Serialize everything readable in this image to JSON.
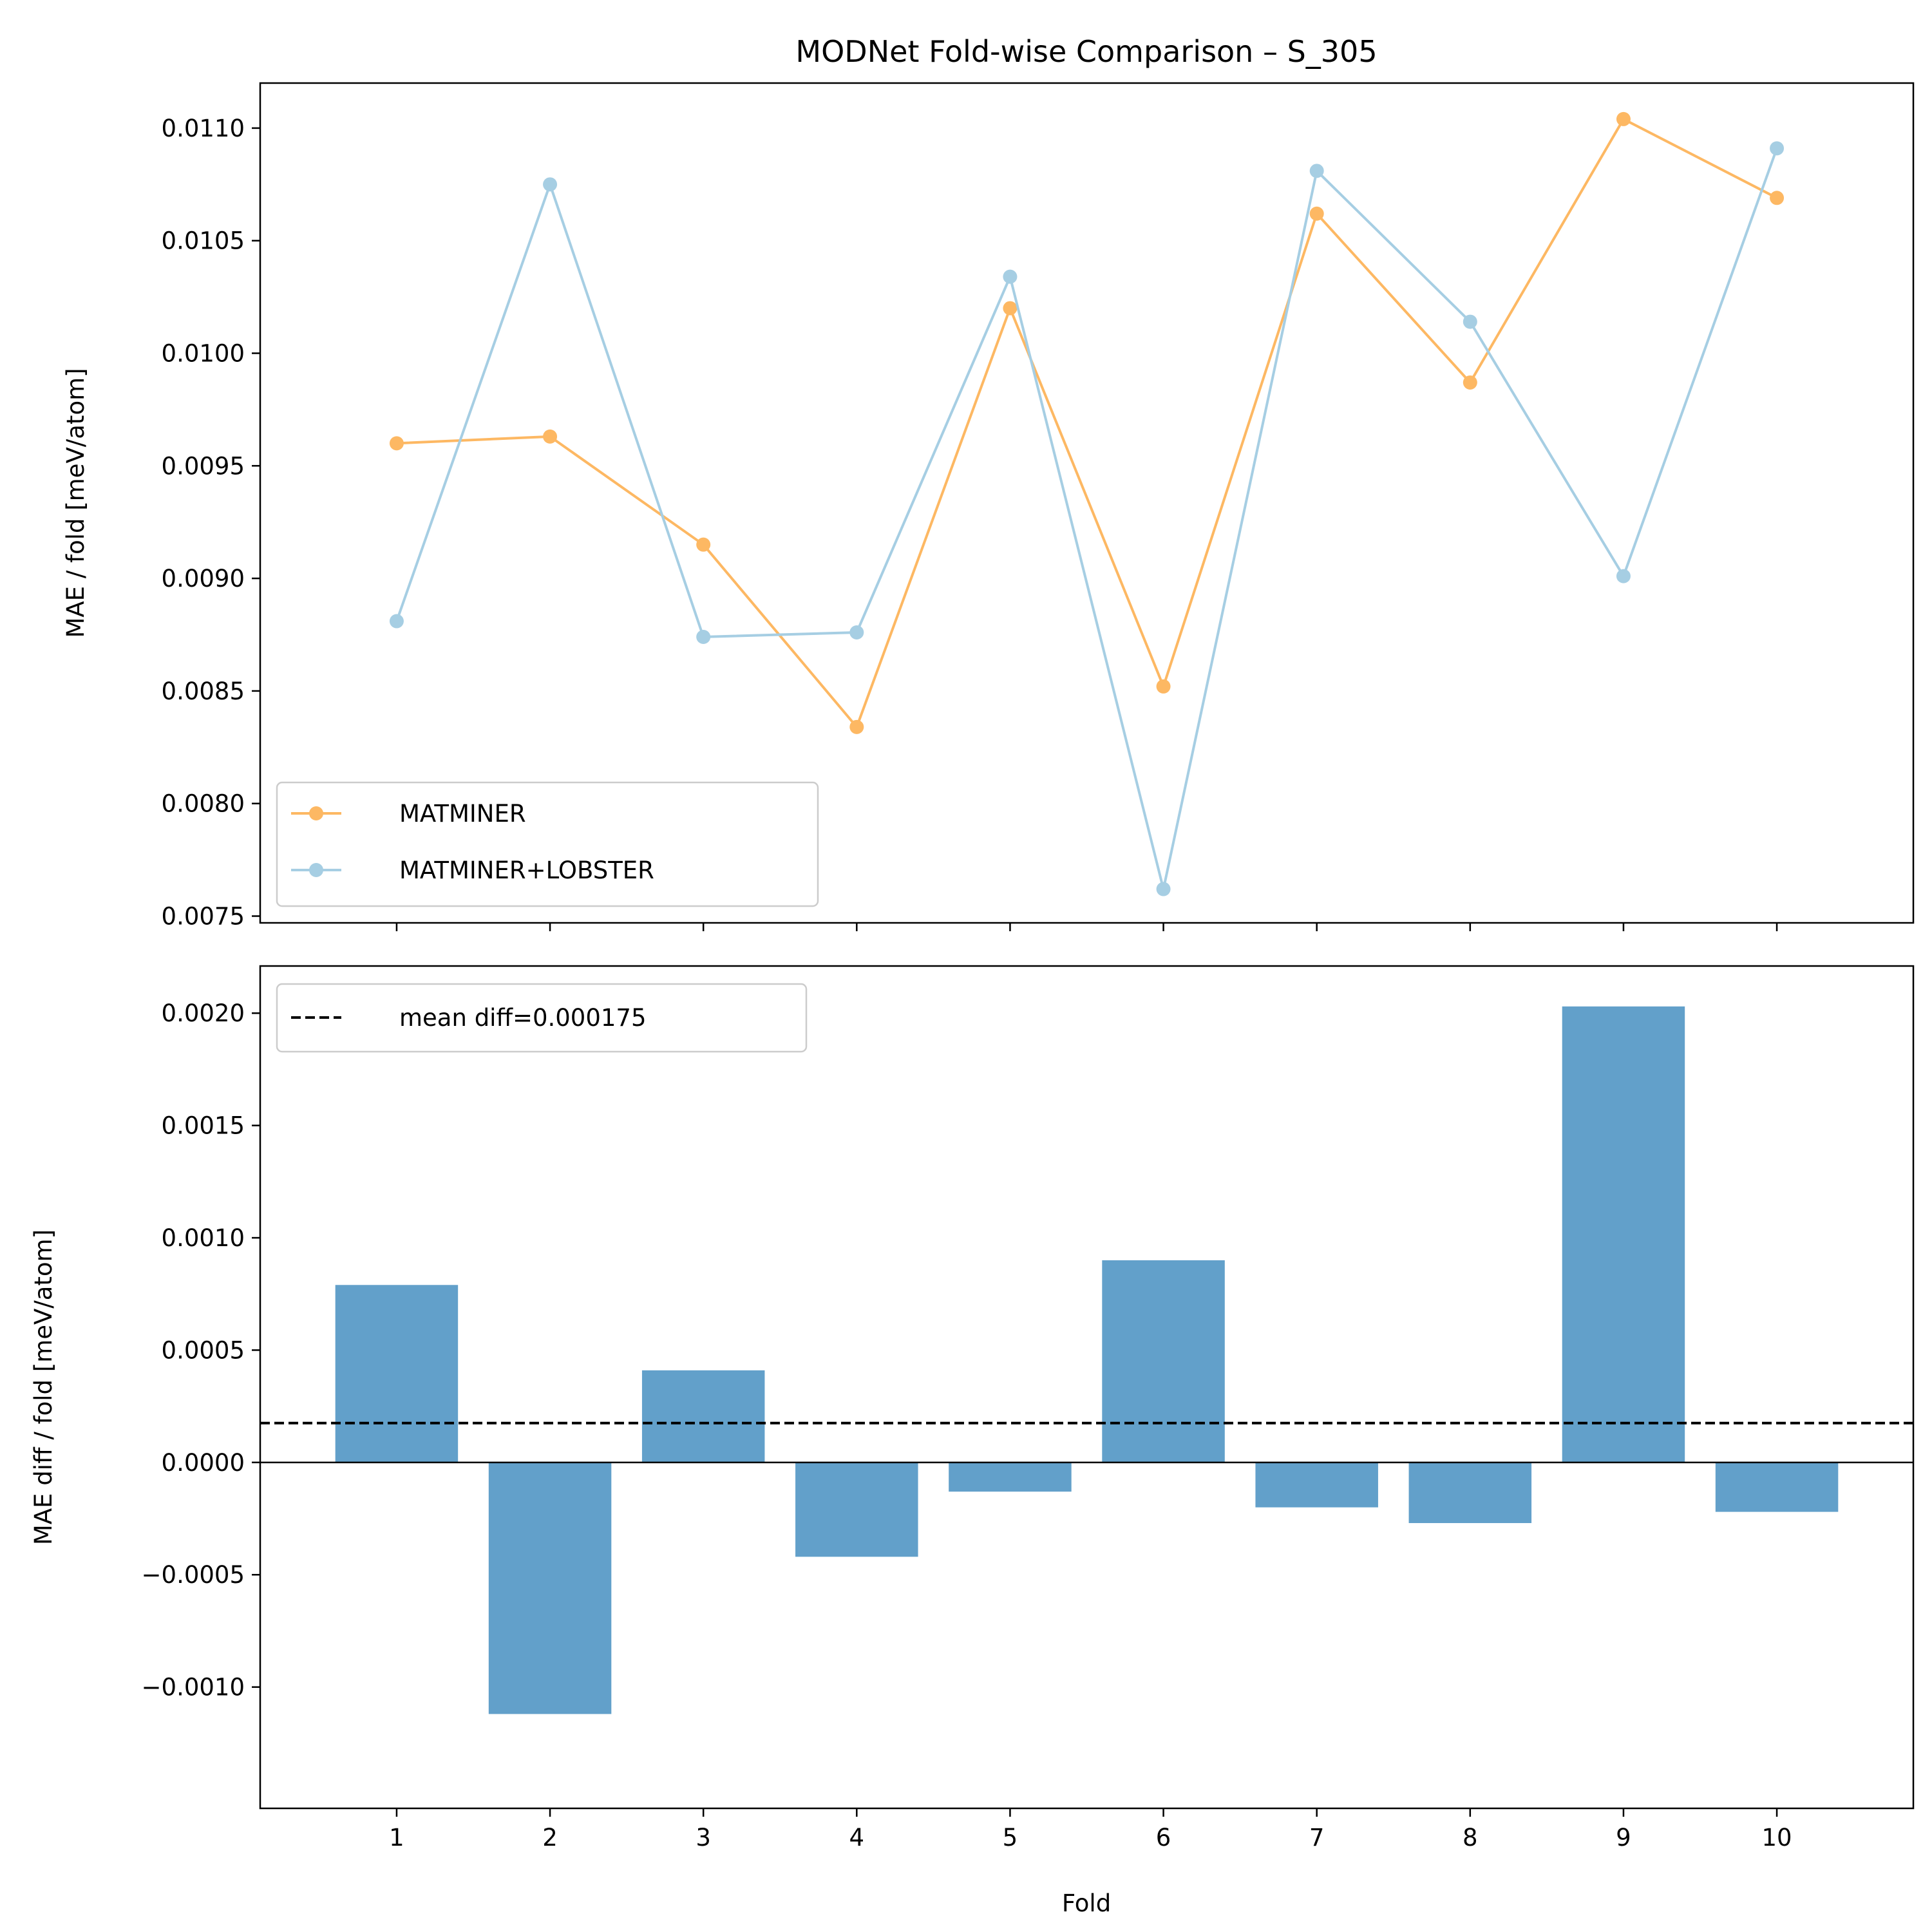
{
  "chart_data": [
    {
      "type": "line",
      "title": "MODNet Fold-wise Comparison – S_305",
      "xlabel": "",
      "ylabel": "MAE / fold [meV/atom]",
      "x": [
        1,
        2,
        3,
        4,
        5,
        6,
        7,
        8,
        9,
        10
      ],
      "xlim": [
        0.11,
        10.89
      ],
      "ylim": [
        0.00747,
        0.0112
      ],
      "yticks": [
        "0.0075",
        "0.0080",
        "0.0085",
        "0.0090",
        "0.0095",
        "0.0100",
        "0.0105",
        "0.0110"
      ],
      "ytick_values": [
        0.0075,
        0.008,
        0.0085,
        0.009,
        0.0095,
        0.01,
        0.0105,
        0.011
      ],
      "grid": false,
      "legend": "lower-left",
      "series": [
        {
          "name": "MATMINER",
          "color": "#fdb863",
          "values": [
            0.0096,
            0.00963,
            0.00915,
            0.00834,
            0.0102,
            0.00852,
            0.01062,
            0.00987,
            0.01104,
            0.01069
          ]
        },
        {
          "name": "MATMINER+LOBSTER",
          "color": "#a6cee3",
          "values": [
            0.00881,
            0.01075,
            0.00874,
            0.00876,
            0.01034,
            0.00762,
            0.01081,
            0.01014,
            0.00901,
            0.01091
          ]
        }
      ]
    },
    {
      "type": "bar",
      "title": "",
      "xlabel": "Fold",
      "ylabel": "MAE diff / fold [meV/atom]",
      "categories": [
        "1",
        "2",
        "3",
        "4",
        "5",
        "6",
        "7",
        "8",
        "9",
        "10"
      ],
      "values": [
        0.00079,
        -0.00112,
        0.00041,
        -0.00042,
        -0.00013,
        0.0009,
        -0.0002,
        -0.00027,
        0.00203,
        -0.00022
      ],
      "bar_color": "#62a0ca",
      "xlim": [
        0.11,
        10.89
      ],
      "ylim": [
        -0.00154,
        0.00221
      ],
      "yticks": [
        "−0.0010",
        "−0.0005",
        "0.0000",
        "0.0005",
        "0.0010",
        "0.0015",
        "0.0020"
      ],
      "ytick_values": [
        -0.001,
        -0.0005,
        0.0,
        0.0005,
        0.001,
        0.0015,
        0.002
      ],
      "mean_line": {
        "label": "mean diff=0.000175",
        "value": 0.000175
      },
      "legend": "upper-left",
      "grid": false
    }
  ]
}
